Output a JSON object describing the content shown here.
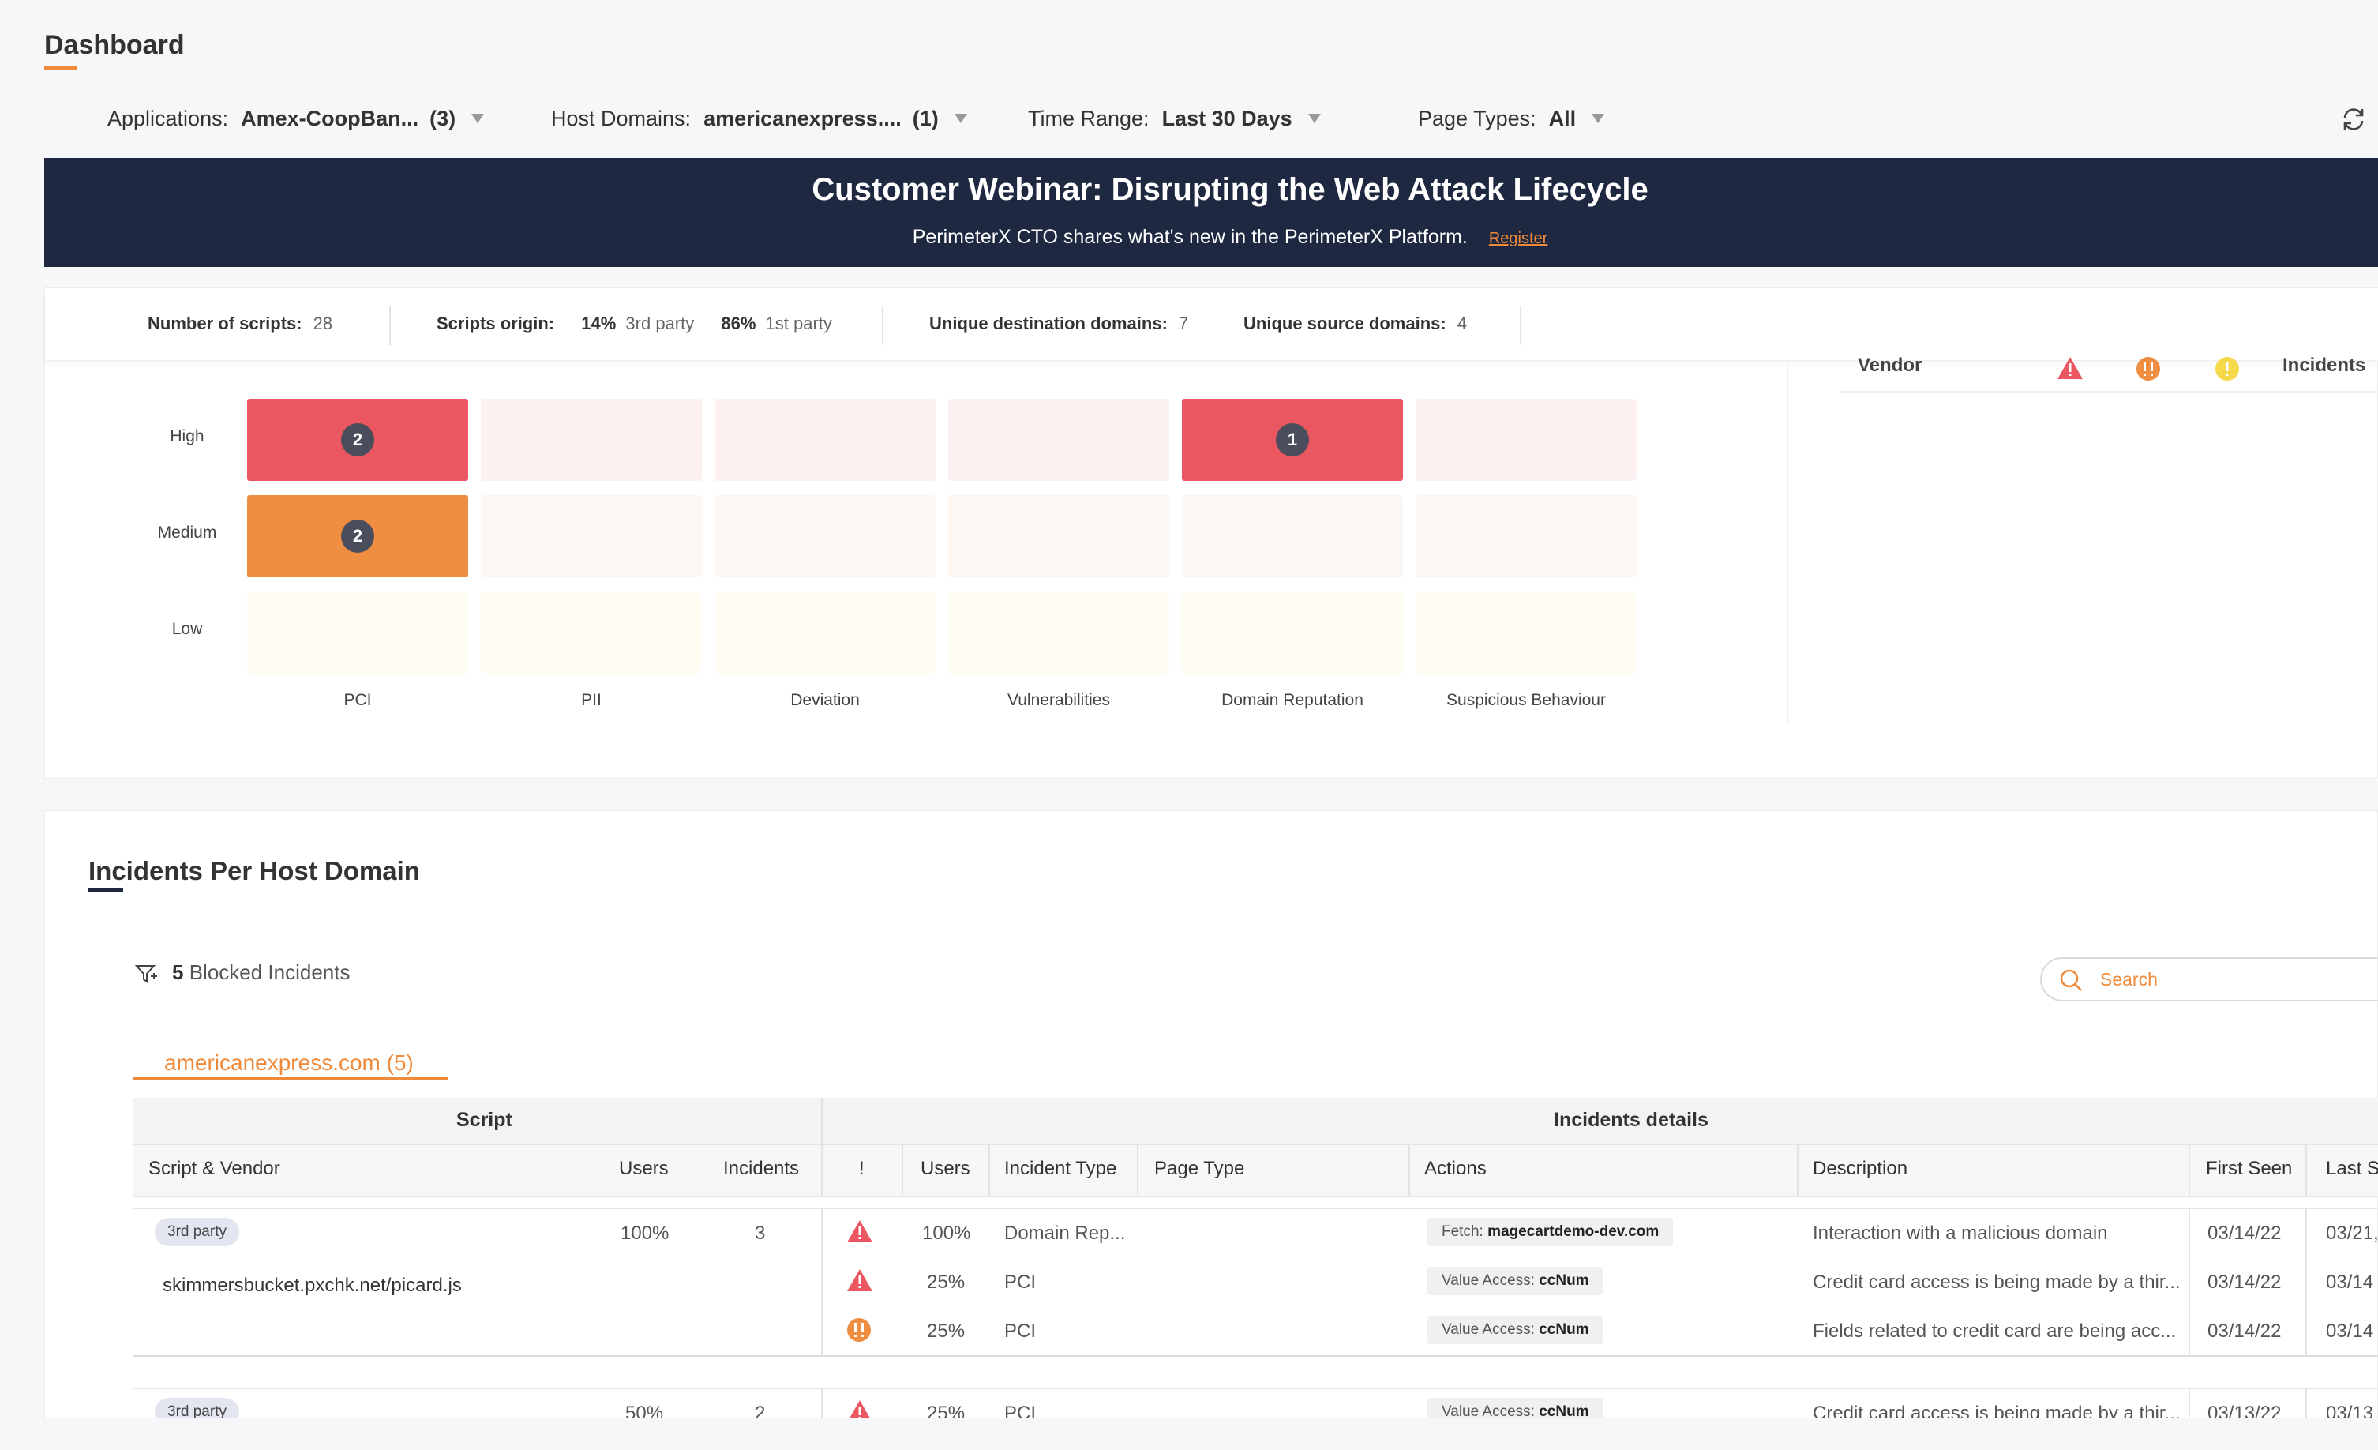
{
  "header": {
    "title": "Dashboard"
  },
  "filters": [
    {
      "label": "Applications:",
      "value": "Amex-CoopBan...",
      "count": "(3)"
    },
    {
      "label": "Host Domains:",
      "value": "americanexpress....",
      "count": "(1)"
    },
    {
      "label": "Time Range:",
      "value": "Last 30 Days",
      "count": ""
    },
    {
      "label": "Page Types:",
      "value": "All",
      "count": ""
    }
  ],
  "banner": {
    "title": "Customer Webinar: Disrupting the Web Attack Lifecycle",
    "subtitle": "PerimeterX CTO shares what's new in the PerimeterX Platform.",
    "link": "Register"
  },
  "stats": {
    "scripts_label": "Number of scripts:",
    "scripts_value": "28",
    "origin_label": "Scripts origin:",
    "third_pct": "14%",
    "third_label": "3rd party",
    "first_pct": "86%",
    "first_label": "1st party",
    "dest_label": "Unique destination domains:",
    "dest_value": "7",
    "src_label": "Unique source domains:",
    "src_value": "4"
  },
  "heatmap": {
    "rows": [
      "High",
      "Medium",
      "Low"
    ],
    "columns": [
      "PCI",
      "PII",
      "Deviation",
      "Vulnerabilities",
      "Domain Reputation",
      "Suspicious Behaviour"
    ],
    "counts": [
      [
        "2",
        "",
        "",
        "",
        "1",
        ""
      ],
      [
        "2",
        "",
        "",
        "",
        "",
        ""
      ],
      [
        "",
        "",
        "",
        "",
        "",
        ""
      ]
    ],
    "colors": {
      "high": "#eb5760",
      "high_light": "#fdf0f1",
      "medium": "#ef8d40",
      "medium_light": "#fdf7f3",
      "low_light": "#fefcf3"
    }
  },
  "vendor_panel": {
    "vendor_label": "Vendor",
    "incidents_label": "Incidents"
  },
  "incidents": {
    "title": "Incidents Per Host Domain",
    "blocked_count": "5",
    "blocked_label": "Blocked Incidents",
    "search_placeholder": "Search",
    "domain_tab": "americanexpress.com (5)",
    "group_script": "Script",
    "group_details": "Incidents details",
    "headers": {
      "script_vendor": "Script & Vendor",
      "users": "Users",
      "incidents": "Incidents",
      "severity": "!",
      "users2": "Users",
      "incident_type": "Incident Type",
      "page_type": "Page Type",
      "actions": "Actions",
      "description": "Description",
      "first_seen": "First Seen",
      "last_seen": "Last S"
    },
    "rows": [
      {
        "tag": "3rd party",
        "script": "skimmersbucket.pxchk.net/picard.js",
        "users": "100%",
        "incidents": "3",
        "details": [
          {
            "severity": "high",
            "users": "100%",
            "type": "Domain Rep...",
            "action_label": "Fetch:",
            "action_value": "magecartdemo-dev.com",
            "description": "Interaction with a malicious domain",
            "first": "03/14/22",
            "last": "03/21,"
          },
          {
            "severity": "high",
            "users": "25%",
            "type": "PCI",
            "action_label": "Value Access:",
            "action_value": "ccNum",
            "description": "Credit card access is being made by a thir...",
            "first": "03/14/22",
            "last": "03/14"
          },
          {
            "severity": "medium",
            "users": "25%",
            "type": "PCI",
            "action_label": "Value Access:",
            "action_value": "ccNum",
            "description": "Fields related to credit card are being acc...",
            "first": "03/14/22",
            "last": "03/14"
          }
        ]
      },
      {
        "tag": "3rd party",
        "users": "50%",
        "incidents": "2",
        "details": [
          {
            "severity": "high",
            "users": "25%",
            "type": "PCI",
            "action_label": "Value Access:",
            "action_value": "ccNum",
            "description": "Credit card access is being made by a thir...",
            "first": "03/13/22",
            "last": "03/13"
          }
        ]
      }
    ]
  }
}
